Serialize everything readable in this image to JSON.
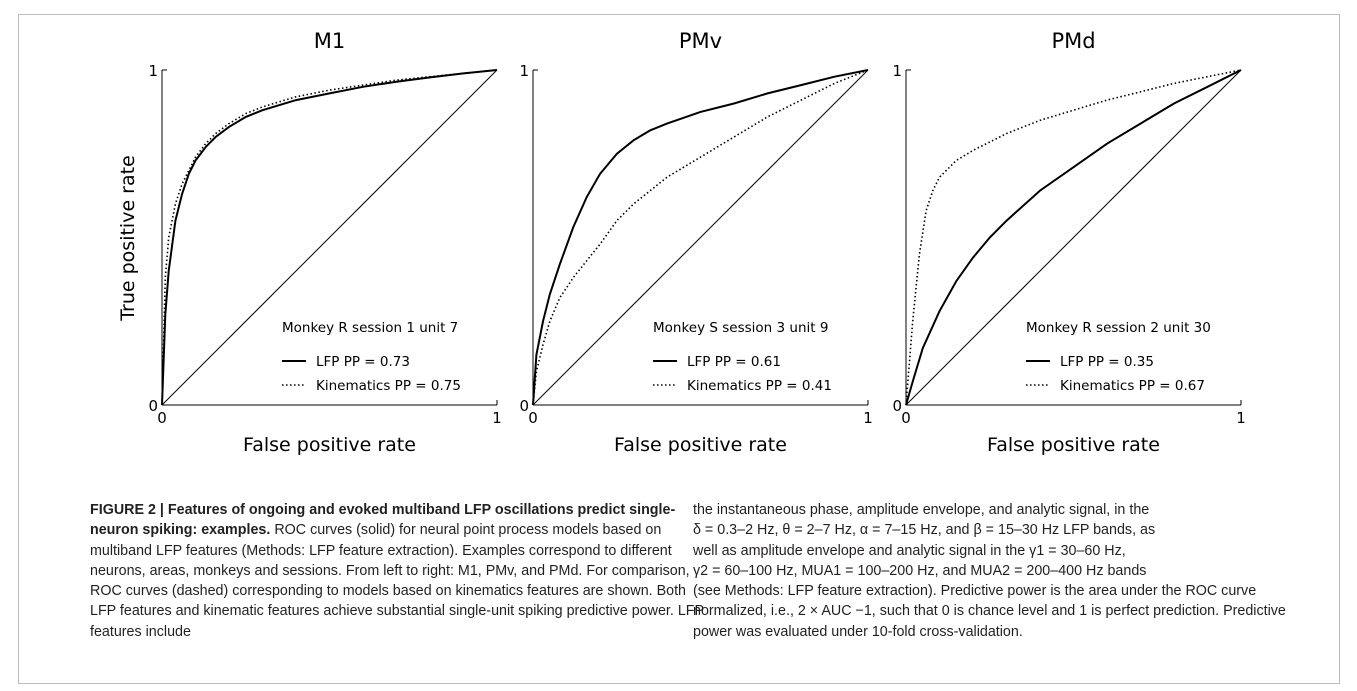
{
  "figure": {
    "panels": [
      {
        "title": "M1",
        "legend_header": "Monkey R session 1 unit 7",
        "solid_label": "LFP PP = 0.73",
        "dotted_label": "Kinematics PP = 0.75"
      },
      {
        "title": "PMv",
        "legend_header": "Monkey S session 3 unit 9",
        "solid_label": "LFP PP = 0.61",
        "dotted_label": "Kinematics PP = 0.41"
      },
      {
        "title": "PMd",
        "legend_header": "Monkey R session 2 unit 30",
        "solid_label": "LFP PP = 0.35",
        "dotted_label": "Kinematics PP = 0.67"
      }
    ],
    "xlabel": "False positive rate",
    "ylabel": "True positive rate",
    "tick_0": "0",
    "tick_1": "1"
  },
  "chart_data": [
    {
      "type": "line",
      "title": "M1",
      "xlabel": "False positive rate",
      "ylabel": "True positive rate",
      "xlim": [
        0,
        1
      ],
      "ylim": [
        0,
        1
      ],
      "series": [
        {
          "name": "LFP PP = 0.73",
          "style": "solid",
          "x": [
            0,
            0.01,
            0.02,
            0.04,
            0.06,
            0.08,
            0.1,
            0.13,
            0.16,
            0.2,
            0.25,
            0.3,
            0.4,
            0.5,
            0.6,
            0.7,
            0.8,
            0.9,
            1.0
          ],
          "y": [
            0,
            0.27,
            0.4,
            0.55,
            0.63,
            0.69,
            0.73,
            0.77,
            0.8,
            0.83,
            0.86,
            0.88,
            0.91,
            0.93,
            0.95,
            0.965,
            0.978,
            0.99,
            1.0
          ]
        },
        {
          "name": "Kinematics PP = 0.75",
          "style": "dotted",
          "x": [
            0,
            0.01,
            0.02,
            0.04,
            0.06,
            0.08,
            0.1,
            0.13,
            0.16,
            0.2,
            0.25,
            0.3,
            0.4,
            0.5,
            0.6,
            0.7,
            0.8,
            0.9,
            1.0
          ],
          "y": [
            0,
            0.38,
            0.5,
            0.6,
            0.66,
            0.7,
            0.74,
            0.78,
            0.81,
            0.84,
            0.87,
            0.89,
            0.92,
            0.94,
            0.955,
            0.97,
            0.98,
            0.99,
            1.0
          ]
        },
        {
          "name": "",
          "style": "diagonal",
          "x": [
            0,
            1
          ],
          "y": [
            0,
            1
          ]
        }
      ],
      "legend": "lower-right",
      "legend_header": "Monkey R session 1 unit 7"
    },
    {
      "type": "line",
      "title": "PMv",
      "xlabel": "False positive rate",
      "ylabel": "True positive rate",
      "xlim": [
        0,
        1
      ],
      "ylim": [
        0,
        1
      ],
      "series": [
        {
          "name": "LFP PP = 0.61",
          "style": "solid",
          "x": [
            0,
            0.01,
            0.03,
            0.05,
            0.08,
            0.12,
            0.16,
            0.2,
            0.25,
            0.3,
            0.35,
            0.4,
            0.5,
            0.6,
            0.7,
            0.8,
            0.9,
            1.0
          ],
          "y": [
            0,
            0.15,
            0.25,
            0.33,
            0.42,
            0.53,
            0.62,
            0.69,
            0.75,
            0.79,
            0.82,
            0.84,
            0.875,
            0.9,
            0.93,
            0.955,
            0.98,
            1.0
          ]
        },
        {
          "name": "Kinematics PP = 0.41",
          "style": "dotted",
          "x": [
            0,
            0.01,
            0.03,
            0.05,
            0.08,
            0.12,
            0.16,
            0.2,
            0.25,
            0.3,
            0.35,
            0.4,
            0.5,
            0.6,
            0.7,
            0.8,
            0.9,
            1.0
          ],
          "y": [
            0,
            0.1,
            0.18,
            0.25,
            0.32,
            0.38,
            0.43,
            0.48,
            0.55,
            0.6,
            0.64,
            0.68,
            0.74,
            0.8,
            0.86,
            0.91,
            0.96,
            1.0
          ]
        },
        {
          "name": "",
          "style": "diagonal",
          "x": [
            0,
            1
          ],
          "y": [
            0,
            1
          ]
        }
      ],
      "legend": "lower-right",
      "legend_header": "Monkey S session 3 unit 9"
    },
    {
      "type": "line",
      "title": "PMd",
      "xlabel": "False positive rate",
      "ylabel": "True positive rate",
      "xlim": [
        0,
        1
      ],
      "ylim": [
        0,
        1
      ],
      "series": [
        {
          "name": "LFP PP = 0.35",
          "style": "solid",
          "x": [
            0,
            0.02,
            0.05,
            0.1,
            0.15,
            0.2,
            0.25,
            0.3,
            0.4,
            0.5,
            0.6,
            0.7,
            0.8,
            0.9,
            1.0
          ],
          "y": [
            0,
            0.07,
            0.17,
            0.28,
            0.37,
            0.44,
            0.5,
            0.55,
            0.64,
            0.71,
            0.78,
            0.84,
            0.9,
            0.95,
            1.0
          ]
        },
        {
          "name": "Kinematics PP = 0.67",
          "style": "dotted",
          "x": [
            0,
            0.02,
            0.04,
            0.06,
            0.08,
            0.1,
            0.15,
            0.2,
            0.3,
            0.4,
            0.5,
            0.6,
            0.7,
            0.8,
            0.9,
            1.0
          ],
          "y": [
            0,
            0.25,
            0.45,
            0.58,
            0.64,
            0.68,
            0.73,
            0.76,
            0.81,
            0.85,
            0.88,
            0.91,
            0.935,
            0.96,
            0.98,
            1.0
          ]
        },
        {
          "name": "",
          "style": "diagonal",
          "x": [
            0,
            1
          ],
          "y": [
            0,
            1
          ]
        }
      ],
      "legend": "lower-right",
      "legend_header": "Monkey R session 2 unit 30"
    }
  ],
  "caption": {
    "label": "FIGURE 2 | Features of ongoing and evoked multiband LFP oscillations predict single-neuron spiking: examples.",
    "left_text": " ROC curves (solid) for neural point process models based on multiband LFP features (Methods: LFP feature extraction). Examples correspond to different neurons, areas, monkeys and sessions. From left to right: M1, PMv, and PMd. For comparison, ROC curves (dashed) corresponding to models based on kinematics features are shown. Both LFP features and kinematic features achieve substantial single-unit spiking predictive power. LFP features include",
    "right_line1": "the instantaneous phase, amplitude envelope, and analytic signal, in the",
    "right_line2": "δ = 0.3–2 Hz, θ = 2–7 Hz, α = 7–15 Hz, and β = 15–30 Hz LFP bands, as",
    "right_line3": "well as amplitude envelope and analytic signal in the γ1 = 30–60 Hz,",
    "right_line4": "γ2 = 60–100 Hz, MUA1 = 100–200 Hz, and MUA2 = 200–400 Hz bands",
    "right_rest": "(see Methods: LFP feature extraction). Predictive power is the area under the ROC curve normalized, i.e., 2 × AUC −1, such that 0 is chance level and 1 is perfect prediction. Predictive power was evaluated under 10-fold cross-validation."
  }
}
